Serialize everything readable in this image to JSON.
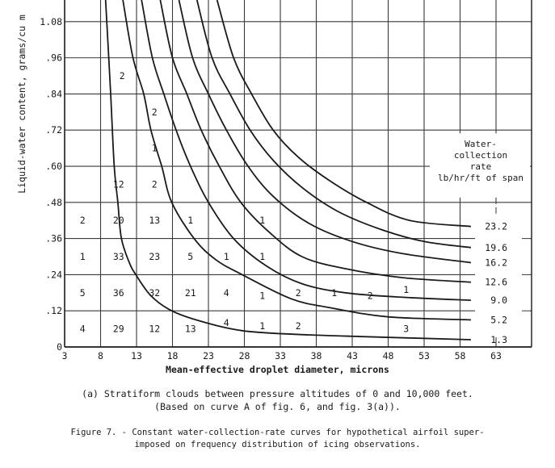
{
  "chart_data": {
    "type": "line",
    "title": "Constant water-collection-rate curves superimposed on frequency distribution of icing observations",
    "xlabel": "Mean-effective droplet diameter, microns",
    "ylabel": "Liquid-water content, grams/cu m",
    "xlim": [
      3,
      68
    ],
    "ylim": [
      0,
      1.15
    ],
    "x_ticks": [
      "3",
      "8",
      "13",
      "18",
      "23",
      "28",
      "33",
      "38",
      "43",
      "48",
      "53",
      "58",
      "63"
    ],
    "y_ticks": [
      "0",
      ".12",
      ".24",
      ".36",
      ".48",
      ".60",
      ".72",
      ".84",
      ".96",
      "1.08"
    ],
    "grid": true,
    "legend": {
      "title_lines": [
        "Water-",
        "collection",
        "rate",
        "lb/hr/ft of span"
      ],
      "position": "right"
    },
    "series": [
      {
        "name": "1.3",
        "points": [
          [
            8.7,
            1.152
          ],
          [
            9.4,
            0.84
          ],
          [
            9.9,
            0.6
          ],
          [
            10.4,
            0.48
          ],
          [
            10.9,
            0.36
          ],
          [
            12.0,
            0.28
          ],
          [
            12.9,
            0.24
          ],
          [
            15.0,
            0.17
          ],
          [
            17.9,
            0.12
          ],
          [
            22.0,
            0.085
          ],
          [
            27.7,
            0.054
          ],
          [
            35.0,
            0.042
          ],
          [
            45.0,
            0.034
          ],
          [
            59.5,
            0.024
          ]
        ]
      },
      {
        "name": "5.2",
        "points": [
          [
            11.1,
            1.152
          ],
          [
            12.5,
            0.96
          ],
          [
            14.0,
            0.84
          ],
          [
            15.0,
            0.72
          ],
          [
            16.5,
            0.6
          ],
          [
            17.9,
            0.48
          ],
          [
            21.0,
            0.36
          ],
          [
            24.0,
            0.29
          ],
          [
            27.7,
            0.24
          ],
          [
            34.5,
            0.16
          ],
          [
            40.0,
            0.13
          ],
          [
            48.0,
            0.1
          ],
          [
            59.5,
            0.09
          ]
        ]
      },
      {
        "name": "9.0",
        "points": [
          [
            13.7,
            1.152
          ],
          [
            15.2,
            0.96
          ],
          [
            16.8,
            0.84
          ],
          [
            18.5,
            0.72
          ],
          [
            20.5,
            0.6
          ],
          [
            23.0,
            0.48
          ],
          [
            26.5,
            0.36
          ],
          [
            31.0,
            0.27
          ],
          [
            36.0,
            0.21
          ],
          [
            42.0,
            0.18
          ],
          [
            50.0,
            0.165
          ],
          [
            59.5,
            0.155
          ]
        ]
      },
      {
        "name": "12.6",
        "points": [
          [
            16.3,
            1.152
          ],
          [
            18.0,
            0.96
          ],
          [
            20.0,
            0.84
          ],
          [
            22.0,
            0.72
          ],
          [
            24.5,
            0.6
          ],
          [
            27.5,
            0.48
          ],
          [
            31.5,
            0.38
          ],
          [
            36.0,
            0.3
          ],
          [
            42.0,
            0.26
          ],
          [
            50.0,
            0.23
          ],
          [
            59.5,
            0.215
          ]
        ]
      },
      {
        "name": "16.2",
        "points": [
          [
            18.9,
            1.152
          ],
          [
            20.8,
            0.96
          ],
          [
            23.0,
            0.84
          ],
          [
            25.5,
            0.72
          ],
          [
            28.5,
            0.6
          ],
          [
            32.0,
            0.5
          ],
          [
            37.0,
            0.41
          ],
          [
            43.0,
            0.35
          ],
          [
            50.0,
            0.31
          ],
          [
            59.5,
            0.28
          ]
        ]
      },
      {
        "name": "19.6",
        "points": [
          [
            21.4,
            1.152
          ],
          [
            23.5,
            0.96
          ],
          [
            26.0,
            0.84
          ],
          [
            28.8,
            0.72
          ],
          [
            32.0,
            0.62
          ],
          [
            36.0,
            0.53
          ],
          [
            41.0,
            0.45
          ],
          [
            47.0,
            0.39
          ],
          [
            53.0,
            0.35
          ],
          [
            59.5,
            0.33
          ]
        ]
      },
      {
        "name": "23.2",
        "points": [
          [
            24.2,
            1.152
          ],
          [
            26.5,
            0.96
          ],
          [
            29.0,
            0.84
          ],
          [
            32.0,
            0.72
          ],
          [
            35.5,
            0.63
          ],
          [
            40.0,
            0.55
          ],
          [
            45.0,
            0.48
          ],
          [
            51.0,
            0.42
          ],
          [
            59.5,
            0.4
          ]
        ]
      }
    ],
    "frequency_counts": [
      {
        "x": 5.5,
        "y": 0.06,
        "label": "4"
      },
      {
        "x": 5.5,
        "y": 0.18,
        "label": "5"
      },
      {
        "x": 5.5,
        "y": 0.3,
        "label": "1"
      },
      {
        "x": 5.5,
        "y": 0.42,
        "label": "2"
      },
      {
        "x": 10.5,
        "y": 0.06,
        "label": "29"
      },
      {
        "x": 10.5,
        "y": 0.18,
        "label": "36"
      },
      {
        "x": 10.5,
        "y": 0.3,
        "label": "33"
      },
      {
        "x": 10.5,
        "y": 0.42,
        "label": "20"
      },
      {
        "x": 10.5,
        "y": 0.54,
        "label": "12"
      },
      {
        "x": 15.5,
        "y": 0.06,
        "label": "12"
      },
      {
        "x": 15.5,
        "y": 0.18,
        "label": "32"
      },
      {
        "x": 15.5,
        "y": 0.3,
        "label": "23"
      },
      {
        "x": 15.5,
        "y": 0.42,
        "label": "13"
      },
      {
        "x": 15.5,
        "y": 0.54,
        "label": "2"
      },
      {
        "x": 15.5,
        "y": 0.66,
        "label": "1"
      },
      {
        "x": 15.5,
        "y": 0.78,
        "label": "2"
      },
      {
        "x": 11.0,
        "y": 0.9,
        "label": "2"
      },
      {
        "x": 20.5,
        "y": 0.06,
        "label": "13"
      },
      {
        "x": 20.5,
        "y": 0.18,
        "label": "21"
      },
      {
        "x": 20.5,
        "y": 0.3,
        "label": "5"
      },
      {
        "x": 20.5,
        "y": 0.42,
        "label": "1"
      },
      {
        "x": 25.5,
        "y": 0.08,
        "label": "4"
      },
      {
        "x": 25.5,
        "y": 0.18,
        "label": "4"
      },
      {
        "x": 25.5,
        "y": 0.3,
        "label": "1"
      },
      {
        "x": 30.5,
        "y": 0.07,
        "label": "1"
      },
      {
        "x": 30.5,
        "y": 0.17,
        "label": "1"
      },
      {
        "x": 30.5,
        "y": 0.3,
        "label": "1"
      },
      {
        "x": 30.5,
        "y": 0.42,
        "label": "1"
      },
      {
        "x": 35.5,
        "y": 0.07,
        "label": "2"
      },
      {
        "x": 35.5,
        "y": 0.18,
        "label": "2"
      },
      {
        "x": 40.5,
        "y": 0.18,
        "label": "1"
      },
      {
        "x": 45.5,
        "y": 0.17,
        "label": "2"
      },
      {
        "x": 50.5,
        "y": 0.19,
        "label": "1"
      },
      {
        "x": 50.5,
        "y": 0.06,
        "label": "3"
      }
    ]
  },
  "axes": {
    "xlabel": "Mean-effective droplet diameter, microns",
    "ylabel": "Liquid-water content, grams/cu m"
  },
  "captions": {
    "subfigure_line1": "(a) Stratiform clouds between pressure altitudes of 0 and 10,000 feet.",
    "subfigure_line2": "(Based on curve A of fig. 6, and fig. 3(a)).",
    "figure_line1": "Figure 7. - Constant water-collection-rate curves for hypothetical airfoil super-",
    "figure_line2": "imposed on frequency distribution of icing observations."
  },
  "legend": {
    "line1": "Water-",
    "line2": "collection",
    "line3": "rate",
    "line4": "lb/hr/ft of span"
  },
  "colors": {
    "ink": "#1a1a1a",
    "grid": "#3a3a3a",
    "paper": "#ffffff"
  }
}
